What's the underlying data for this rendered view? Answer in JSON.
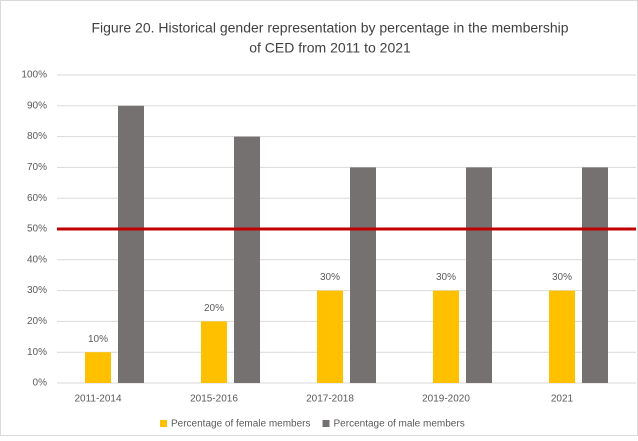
{
  "chart_data": {
    "type": "bar",
    "title": [
      "Figure 20. Historical gender representation by percentage in the membership",
      "of CED from 2011 to 2021"
    ],
    "categories": [
      "2011-2014",
      "2015-2016",
      "2017-2018",
      "2019-2020",
      "2021"
    ],
    "series": [
      {
        "name": "Percentage of female members",
        "color": "#ffc000",
        "values": [
          10,
          20,
          30,
          30,
          30
        ],
        "value_labels": [
          "10%",
          "20%",
          "30%",
          "30%",
          "30%"
        ]
      },
      {
        "name": "Percentage of male members",
        "color": "#767171",
        "values": [
          90,
          80,
          70,
          70,
          70
        ]
      }
    ],
    "ylim": [
      0,
      100
    ],
    "yticks": [
      {
        "value": 0,
        "label": "0%"
      },
      {
        "value": 10,
        "label": "10%"
      },
      {
        "value": 20,
        "label": "20%"
      },
      {
        "value": 30,
        "label": "30%"
      },
      {
        "value": 40,
        "label": "40%"
      },
      {
        "value": 50,
        "label": "50%"
      },
      {
        "value": 60,
        "label": "60%"
      },
      {
        "value": 70,
        "label": "70%"
      },
      {
        "value": 80,
        "label": "80%"
      },
      {
        "value": 90,
        "label": "90%"
      },
      {
        "value": 100,
        "label": "100%"
      }
    ],
    "grid": true,
    "reference_line": {
      "value": 50,
      "color": "#c00000"
    },
    "legend": "bottom"
  }
}
